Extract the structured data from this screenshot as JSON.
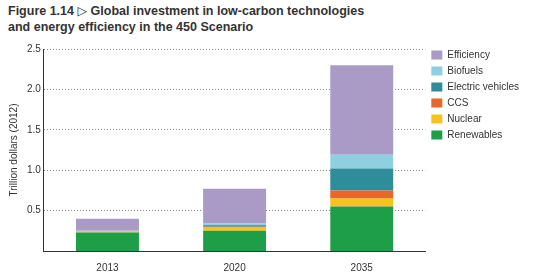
{
  "chart_data": {
    "type": "bar",
    "title": "Figure 1.14 ▷ Global investment in low-carbon technologies and energy efficiency in the 450 Scenario",
    "y_label": "Trillion dollars (2012)",
    "categories": [
      "2013",
      "2020",
      "2035"
    ],
    "series": [
      {
        "name": "Renewables",
        "color": "#1f9e4a",
        "values": [
          0.23,
          0.25,
          0.55
        ]
      },
      {
        "name": "Nuclear",
        "color": "#f7c21c",
        "values": [
          0.01,
          0.04,
          0.1
        ]
      },
      {
        "name": "CCS",
        "color": "#e8672a",
        "values": [
          0,
          0.01,
          0.1
        ]
      },
      {
        "name": "Electric vehicles",
        "color": "#2f8c9a",
        "values": [
          0.005,
          0.02,
          0.27
        ]
      },
      {
        "name": "Biofuels",
        "color": "#8fd0e0",
        "values": [
          0.005,
          0.02,
          0.17
        ]
      },
      {
        "name": "Efficiency",
        "color": "#a99bc6",
        "values": [
          0.15,
          0.43,
          1.11
        ]
      }
    ],
    "ylim": [
      0,
      2.5
    ],
    "yticks": [
      0.5,
      {
        "value": 1.0,
        "label": "1.0"
      },
      1.5,
      {
        "value": 2.0,
        "label": "2.0"
      },
      2.5
    ],
    "stacked": true,
    "grid": true,
    "legend": "right"
  }
}
